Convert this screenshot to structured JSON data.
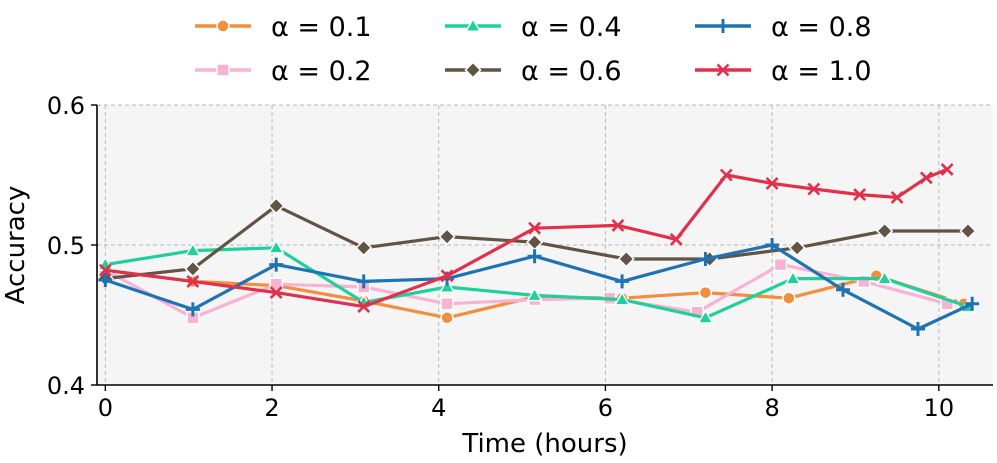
{
  "chart_data": {
    "type": "line",
    "title": "",
    "xlabel": "Time (hours)",
    "ylabel": "Accuracy",
    "xlim": [
      -0.1,
      10.65
    ],
    "ylim": [
      0.4,
      0.6
    ],
    "xticks": [
      {
        "value": 0,
        "label": "0"
      },
      {
        "value": 2,
        "label": "2"
      },
      {
        "value": 4,
        "label": "4"
      },
      {
        "value": 6,
        "label": "6"
      },
      {
        "value": 8,
        "label": "8"
      },
      {
        "value": 10,
        "label": "10"
      }
    ],
    "yticks": [
      {
        "value": 0.4,
        "label": "0.4"
      },
      {
        "value": 0.5,
        "label": "0.5"
      },
      {
        "value": 0.6,
        "label": "0.6"
      }
    ],
    "grid": true,
    "background": "#f5f5f5",
    "legend": {
      "position": "top",
      "columns": 3
    },
    "series": [
      {
        "name": "α  = 0.1",
        "color": "#f28e3d",
        "marker": "circle",
        "points": [
          [
            0,
            0.482
          ],
          [
            1.05,
            0.474
          ],
          [
            2.05,
            0.471
          ],
          [
            3.1,
            0.46
          ],
          [
            4.1,
            0.448
          ],
          [
            5.15,
            0.463
          ],
          [
            6.2,
            0.462
          ],
          [
            7.2,
            0.466
          ],
          [
            8.2,
            0.462
          ],
          [
            9.25,
            0.478
          ],
          [
            10.3,
            0.458
          ]
        ]
      },
      {
        "name": "α  = 0.2",
        "color": "#f7b3d1",
        "marker": "square",
        "points": [
          [
            0,
            0.482
          ],
          [
            1.05,
            0.448
          ],
          [
            2.05,
            0.472
          ],
          [
            3.1,
            0.47
          ],
          [
            4.1,
            0.458
          ],
          [
            5.15,
            0.461
          ],
          [
            6.05,
            0.462
          ],
          [
            7.1,
            0.452
          ],
          [
            8.1,
            0.486
          ],
          [
            9.1,
            0.474
          ],
          [
            10.1,
            0.458
          ]
        ]
      },
      {
        "name": "α  = 0.4",
        "color": "#1fd09d",
        "marker": "triangle",
        "points": [
          [
            0,
            0.486
          ],
          [
            1.05,
            0.496
          ],
          [
            2.05,
            0.498
          ],
          [
            3.1,
            0.459
          ],
          [
            4.1,
            0.47
          ],
          [
            5.15,
            0.464
          ],
          [
            6.2,
            0.461
          ],
          [
            7.2,
            0.448
          ],
          [
            8.25,
            0.476
          ],
          [
            9.35,
            0.476
          ],
          [
            10.35,
            0.456
          ]
        ]
      },
      {
        "name": "α  = 0.6",
        "color": "#615444",
        "marker": "diamond",
        "points": [
          [
            0,
            0.476
          ],
          [
            1.05,
            0.483
          ],
          [
            2.05,
            0.528
          ],
          [
            3.1,
            0.498
          ],
          [
            4.1,
            0.506
          ],
          [
            5.15,
            0.502
          ],
          [
            6.25,
            0.49
          ],
          [
            7.25,
            0.49
          ],
          [
            8.3,
            0.498
          ],
          [
            9.35,
            0.51
          ],
          [
            10.35,
            0.51
          ]
        ]
      },
      {
        "name": "α  = 0.8",
        "color": "#1f73b3",
        "marker": "plus",
        "points": [
          [
            0,
            0.475
          ],
          [
            1.05,
            0.454
          ],
          [
            2.05,
            0.486
          ],
          [
            3.1,
            0.474
          ],
          [
            4.1,
            0.476
          ],
          [
            5.15,
            0.492
          ],
          [
            6.2,
            0.474
          ],
          [
            7.2,
            0.49
          ],
          [
            8.0,
            0.5
          ],
          [
            8.85,
            0.468
          ],
          [
            9.75,
            0.44
          ],
          [
            10.4,
            0.458
          ]
        ]
      },
      {
        "name": "α  = 1.0",
        "color": "#e0304b",
        "marker": "x",
        "points": [
          [
            0,
            0.482
          ],
          [
            1.05,
            0.474
          ],
          [
            2.05,
            0.466
          ],
          [
            3.1,
            0.456
          ],
          [
            4.1,
            0.478
          ],
          [
            5.15,
            0.512
          ],
          [
            6.15,
            0.514
          ],
          [
            6.85,
            0.504
          ],
          [
            7.45,
            0.55
          ],
          [
            8.0,
            0.544
          ],
          [
            8.5,
            0.54
          ],
          [
            9.05,
            0.536
          ],
          [
            9.5,
            0.534
          ],
          [
            9.85,
            0.548
          ],
          [
            10.1,
            0.554
          ]
        ]
      }
    ]
  }
}
